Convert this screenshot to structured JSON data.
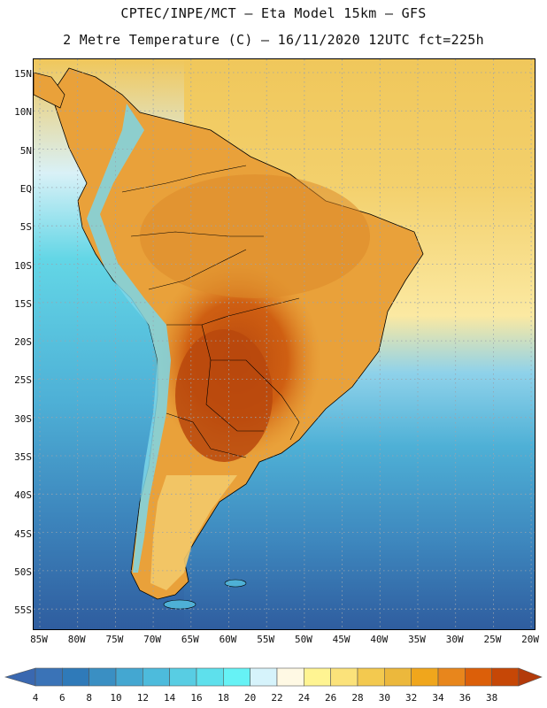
{
  "header": {
    "line1": "CPTEC/INPE/MCT –  Eta Model 15km – GFS",
    "line2": "2 Metre Temperature (C) – 16/11/2020 12UTC fct=225h"
  },
  "lat_labels": [
    "15N",
    "10N",
    "5N",
    "EQ",
    "5S",
    "10S",
    "15S",
    "20S",
    "25S",
    "30S",
    "35S",
    "40S",
    "45S",
    "50S",
    "55S"
  ],
  "lon_labels": [
    "85W",
    "80W",
    "75W",
    "70W",
    "65W",
    "60W",
    "55W",
    "50W",
    "45W",
    "40W",
    "35W",
    "30W",
    "25W",
    "20W"
  ],
  "colorbar": {
    "labels": [
      "4",
      "6",
      "8",
      "10",
      "12",
      "14",
      "16",
      "18",
      "20",
      "22",
      "24",
      "26",
      "28",
      "30",
      "32",
      "34",
      "36",
      "38"
    ],
    "colors": [
      "#3a73b7",
      "#2f7ab9",
      "#3a8fc3",
      "#44a7d1",
      "#4dbbdc",
      "#58cde3",
      "#5ee0ec",
      "#66f2f5",
      "#d6f3fb",
      "#fff9e4",
      "#fff492",
      "#fbe27a",
      "#f3c94f",
      "#ecb83c",
      "#f0a61c",
      "#e8861c",
      "#dc5f09",
      "#c64706"
    ],
    "end_low": "#3a68b0",
    "end_high": "#b33a0a"
  },
  "field_colors": {
    "ocean_far": "#2f5d9f",
    "ocean_cold": "#3d86bd",
    "ocean_mid": "#4eb0d6",
    "ocean_warm": "#63d6e6",
    "ocean_tropic": "#f4d77a",
    "ocean_equator": "#f0c75b",
    "land_warm": "#e9a13a",
    "land_hot": "#d76a14",
    "land_hottest": "#b8480d",
    "andes": "#7dd6e8",
    "patagonia": "#f3c96a",
    "grid": "#9aa3ad",
    "border": "#000000"
  }
}
